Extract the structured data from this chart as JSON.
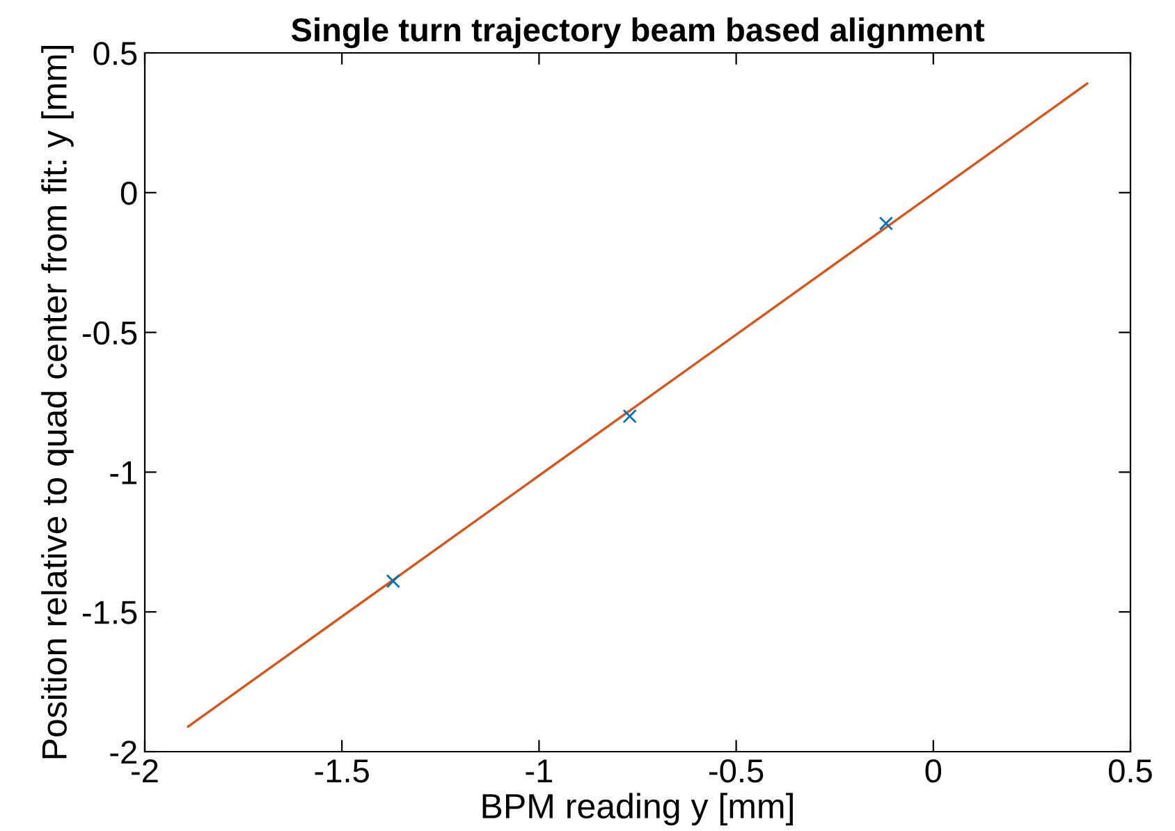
{
  "chart_data": {
    "type": "scatter",
    "title": "Single turn trajectory beam based alignment",
    "xlabel": "BPM reading y [mm]",
    "ylabel": "Position relative to quad center from fit: y [mm]",
    "xlim": [
      -2,
      0.5
    ],
    "xticks": [
      -2,
      -1.5,
      -1,
      -0.5,
      0,
      0.5
    ],
    "ylim": [
      -2,
      0.5
    ],
    "yticks": [
      -2,
      -1.5,
      -1,
      -0.5,
      0,
      0.5
    ],
    "grid": false,
    "legend": false,
    "series": [
      {
        "marker": "cross",
        "color": "#0072bd",
        "x": [
          -1.37,
          -0.77,
          -0.12
        ],
        "values": [
          -1.39,
          -0.8,
          -0.11
        ]
      },
      {
        "type": "line",
        "marker": "none",
        "line_style": "solid",
        "color": "#d95319",
        "x": [
          -1.89,
          0.39
        ],
        "values": [
          -1.91,
          0.39
        ]
      }
    ]
  }
}
